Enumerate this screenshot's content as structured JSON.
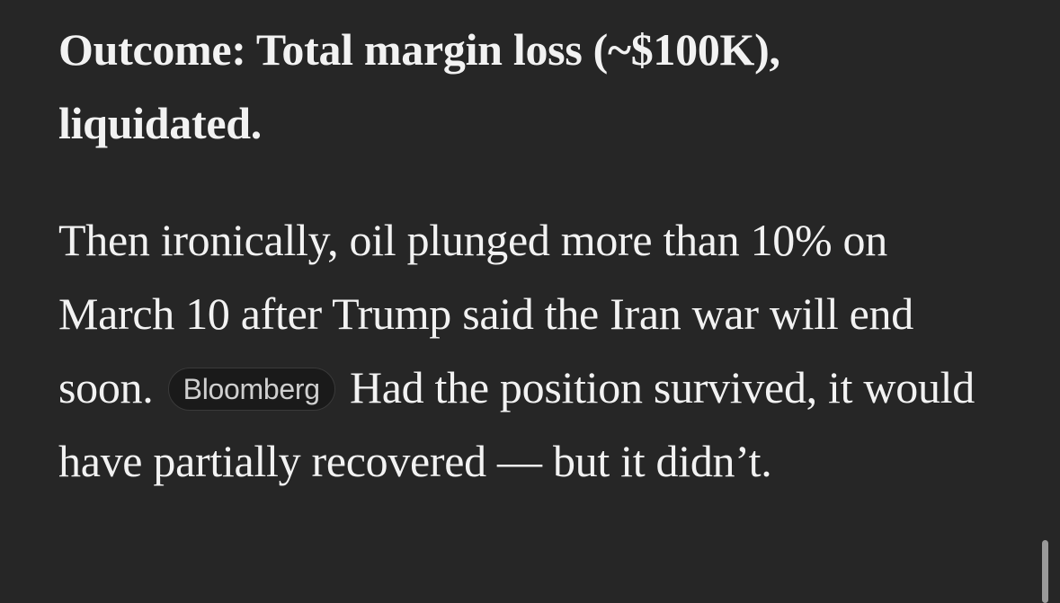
{
  "article": {
    "bold_paragraph": "Outcome: Total margin loss (~$100K), liquidated.",
    "paragraph": {
      "before": "Then ironically, oil plunged more than 10% on March 10 after Trump said the Iran war will end soon.",
      "source": "Bloomberg",
      "after": "Had the position survived, it would have partially recovered — but it didn’t."
    }
  }
}
